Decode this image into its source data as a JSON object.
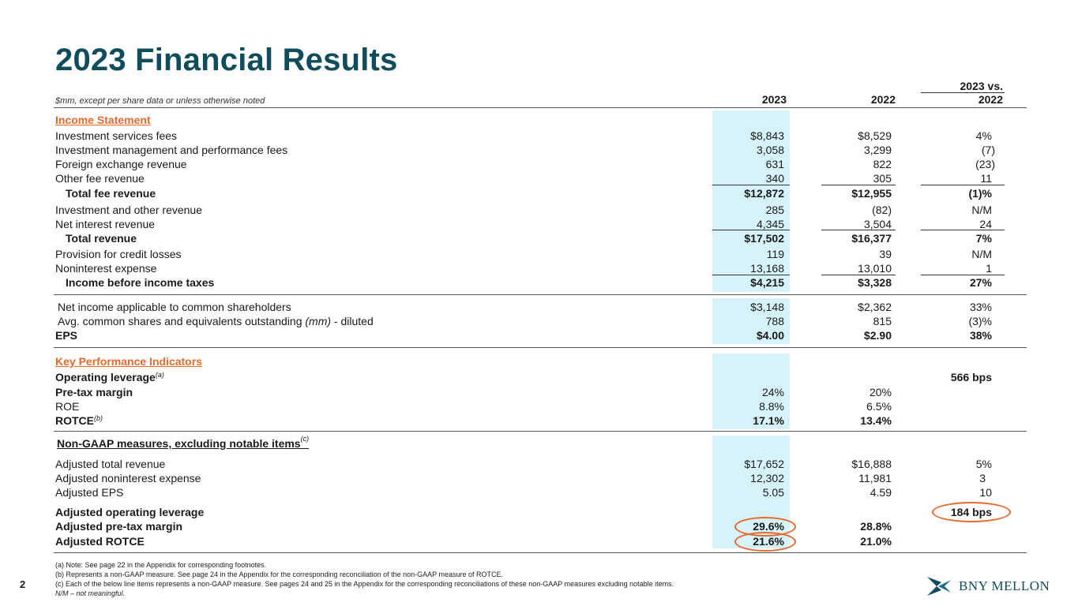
{
  "title": "2023 Financial Results",
  "header": {
    "note": "$mm, except per share data or unless otherwise noted",
    "col_2023": "2023",
    "col_2022": "2022",
    "col_vs_top": "2023 vs.",
    "col_vs_bottom": "2022"
  },
  "income_statement": {
    "heading": "Income Statement",
    "rows": [
      {
        "label": "Investment services fees",
        "v2023": "$8,843",
        "v2022": "$8,529",
        "vs": "4%"
      },
      {
        "label": "Investment management and performance fees",
        "v2023": "3,058",
        "v2022": "3,299",
        "vs": "(7)"
      },
      {
        "label": "Foreign exchange revenue",
        "v2023": "631",
        "v2022": "822",
        "vs": "(23)"
      },
      {
        "label": "Other fee revenue",
        "v2023": "340",
        "v2022": "305",
        "vs": "11"
      },
      {
        "label": "Total fee revenue",
        "v2023": "$12,872",
        "v2022": "$12,955",
        "vs": "(1)%"
      },
      {
        "label": "Investment and other revenue",
        "v2023": "285",
        "v2022": "(82)",
        "vs": "N/M"
      },
      {
        "label": "Net interest revenue",
        "v2023": "4,345",
        "v2022": "3,504",
        "vs": "24"
      },
      {
        "label": "Total revenue",
        "v2023": "$17,502",
        "v2022": "$16,377",
        "vs": "7%"
      },
      {
        "label": "Provision for credit losses",
        "v2023": "119",
        "v2022": "39",
        "vs": "N/M"
      },
      {
        "label": "Noninterest expense",
        "v2023": "13,168",
        "v2022": "13,010",
        "vs": "1"
      },
      {
        "label": "Income before income taxes",
        "v2023": "$4,215",
        "v2022": "$3,328",
        "vs": "27%"
      }
    ]
  },
  "eps_block": {
    "rows": [
      {
        "label": "Net income applicable to common shareholders",
        "v2023": "$3,148",
        "v2022": "$2,362",
        "vs": "33%"
      },
      {
        "label_pre": "Avg. common shares and equivalents outstanding ",
        "label_italic": "(mm)",
        "label_post": " - diluted",
        "v2023": "788",
        "v2022": "815",
        "vs": "(3)%"
      },
      {
        "label": "EPS",
        "v2023": "$4.00",
        "v2022": "$2.90",
        "vs": "38%"
      }
    ]
  },
  "kpi": {
    "heading": "Key Performance Indicators",
    "rows": [
      {
        "label": "Operating leverage",
        "sup": "(a)",
        "v2023": "",
        "v2022": "",
        "vs": "566 bps"
      },
      {
        "label": "Pre-tax margin",
        "sup": "",
        "v2023": "24%",
        "v2022": "20%",
        "vs": ""
      },
      {
        "label": "ROE",
        "sup": "",
        "v2023": "8.8%",
        "v2022": "6.5%",
        "vs": ""
      },
      {
        "label": "ROTCE",
        "sup": "(b)",
        "v2023": "17.1%",
        "v2022": "13.4%",
        "vs": ""
      }
    ]
  },
  "non_gaap": {
    "heading": "Non-GAAP measures, excluding notable items",
    "heading_sup": "(c)",
    "rows": [
      {
        "label": "Adjusted total revenue",
        "v2023": "$17,652",
        "v2022": "$16,888",
        "vs": "5%"
      },
      {
        "label": "Adjusted noninterest expense",
        "v2023": "12,302",
        "v2022": "11,981",
        "vs": "3"
      },
      {
        "label": "Adjusted EPS",
        "v2023": "5.05",
        "v2022": "4.59",
        "vs": "10"
      },
      {
        "label": "Adjusted operating leverage",
        "v2023": "",
        "v2022": "",
        "vs": "184 bps"
      },
      {
        "label": "Adjusted pre-tax margin",
        "v2023": "29.6%",
        "v2022": "28.8%",
        "vs": ""
      },
      {
        "label": "Adjusted ROTCE",
        "v2023": "21.6%",
        "v2022": "21.0%",
        "vs": ""
      }
    ]
  },
  "footnotes": [
    "(a) Note: See page 22 in the Appendix for corresponding footnotes.",
    "(b) Represents a non-GAAP measure. See page 24 in the Appendix for the corresponding reconciliation of the non-GAAP measure of ROTCE.",
    "(c) Each of the below line items represents a non-GAAP measure. See pages 24 and 25 in the Appendix for the corresponding reconciliations of these non-GAAP measures excluding notable items.",
    "N/M – not meaningful."
  ],
  "page_number": "2",
  "logo_text": "BNY MELLON",
  "colors": {
    "title": "#0f4c5c",
    "accent": "#e8692d",
    "highlight": "#d6f2fb"
  }
}
